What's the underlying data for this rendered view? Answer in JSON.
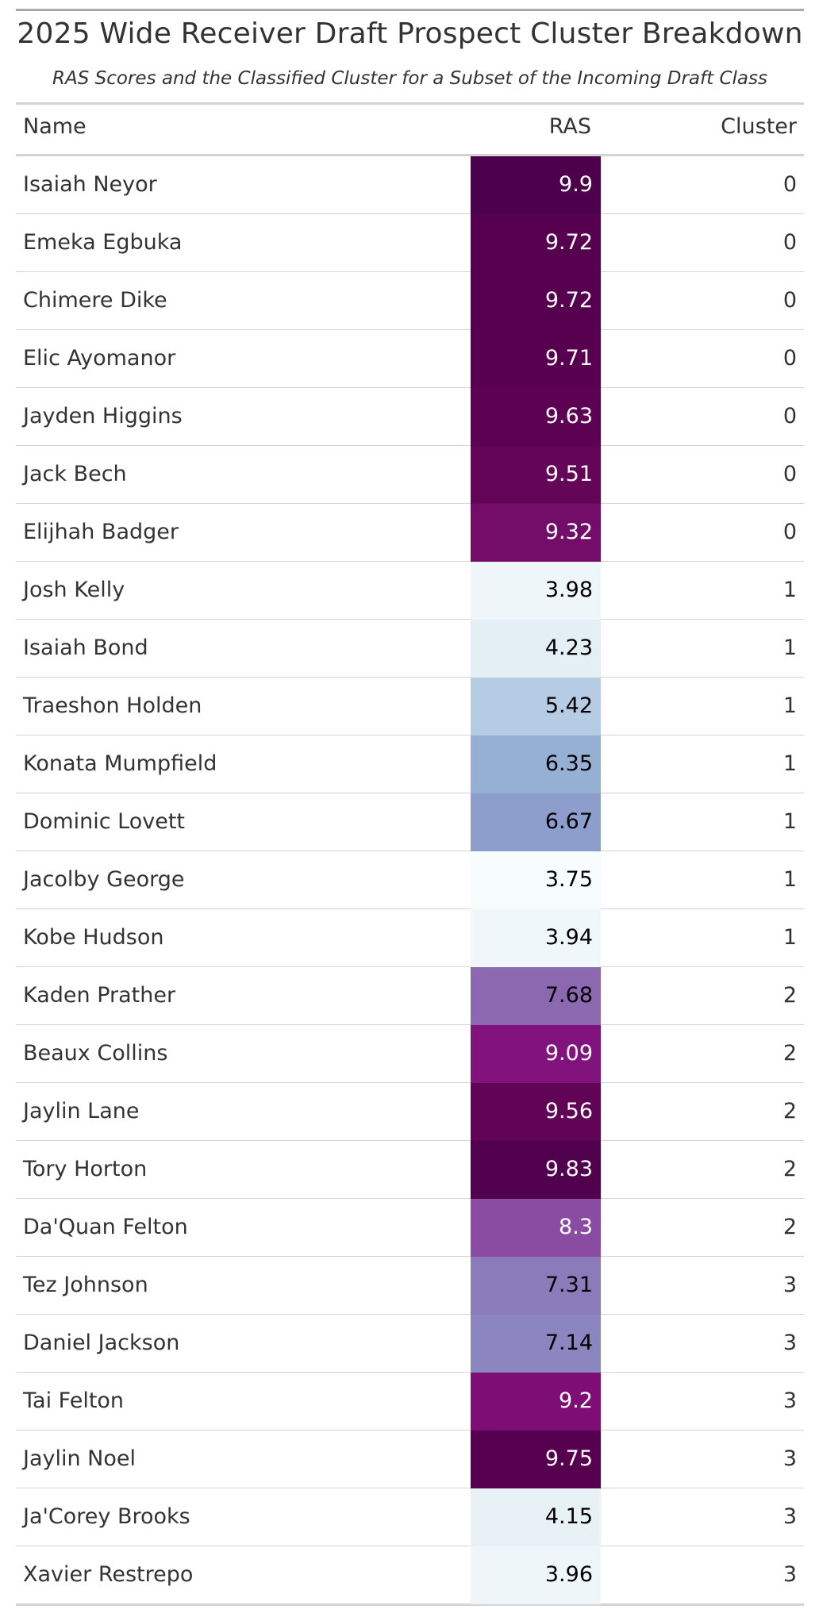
{
  "title": "2025 Wide Receiver Draft Prospect Cluster Breakdown",
  "subtitle": "RAS Scores and the Classified Cluster for a Subset of the Incoming Draft Class",
  "columns": {
    "name": "Name",
    "ras": "RAS",
    "cluster": "Cluster"
  },
  "chart_data": {
    "type": "table",
    "title": "2025 Wide Receiver Draft Prospect Cluster Breakdown",
    "subtitle": "RAS Scores and the Classified Cluster for a Subset of the Incoming Draft Class",
    "columns": [
      "Name",
      "RAS",
      "Cluster"
    ],
    "color_scale": {
      "column": "RAS",
      "low_color": "#f7fcfd",
      "high_color": "#4d004b"
    },
    "rows": [
      {
        "name": "Isaiah Neyor",
        "ras": "9.9",
        "cluster": "0",
        "color": "#4d004b",
        "text_color": "#ffffff"
      },
      {
        "name": "Emeka Egbuka",
        "ras": "9.72",
        "cluster": "0",
        "color": "#57004f",
        "text_color": "#ffffff"
      },
      {
        "name": "Chimere Dike",
        "ras": "9.72",
        "cluster": "0",
        "color": "#57004f",
        "text_color": "#ffffff"
      },
      {
        "name": "Elic Ayomanor",
        "ras": "9.71",
        "cluster": "0",
        "color": "#58004f",
        "text_color": "#ffffff"
      },
      {
        "name": "Jayden Higgins",
        "ras": "9.63",
        "cluster": "0",
        "color": "#5d0252",
        "text_color": "#ffffff"
      },
      {
        "name": "Jack Bech",
        "ras": "9.51",
        "cluster": "0",
        "color": "#640558",
        "text_color": "#ffffff"
      },
      {
        "name": "Elijhah Badger",
        "ras": "9.32",
        "cluster": "0",
        "color": "#740c69",
        "text_color": "#ffffff"
      },
      {
        "name": "Josh Kelly",
        "ras": "3.98",
        "cluster": "1",
        "color": "#eef6f9",
        "text_color": "#000000"
      },
      {
        "name": "Isaiah Bond",
        "ras": "4.23",
        "cluster": "1",
        "color": "#e3eef5",
        "text_color": "#000000"
      },
      {
        "name": "Traeshon Holden",
        "ras": "5.42",
        "cluster": "1",
        "color": "#b6cce4",
        "text_color": "#000000"
      },
      {
        "name": "Konata Mumpfield",
        "ras": "6.35",
        "cluster": "1",
        "color": "#96b0d4",
        "text_color": "#000000"
      },
      {
        "name": "Dominic Lovett",
        "ras": "6.67",
        "cluster": "1",
        "color": "#8d9ecc",
        "text_color": "#000000"
      },
      {
        "name": "Jacolby George",
        "ras": "3.75",
        "cluster": "1",
        "color": "#f7fcfd",
        "text_color": "#000000"
      },
      {
        "name": "Kobe Hudson",
        "ras": "3.94",
        "cluster": "1",
        "color": "#f0f7fa",
        "text_color": "#000000"
      },
      {
        "name": "Kaden Prather",
        "ras": "7.68",
        "cluster": "2",
        "color": "#8c68b0",
        "text_color": "#000000"
      },
      {
        "name": "Beaux Collins",
        "ras": "9.09",
        "cluster": "2",
        "color": "#82127d",
        "text_color": "#ffffff"
      },
      {
        "name": "Jaylin Lane",
        "ras": "9.56",
        "cluster": "2",
        "color": "#610456",
        "text_color": "#ffffff"
      },
      {
        "name": "Tory Horton",
        "ras": "9.83",
        "cluster": "2",
        "color": "#51004d",
        "text_color": "#ffffff"
      },
      {
        "name": "Da'Quan Felton",
        "ras": "8.3",
        "cluster": "2",
        "color": "#8a4ba2",
        "text_color": "#ffffff"
      },
      {
        "name": "Tez Johnson",
        "ras": "7.31",
        "cluster": "3",
        "color": "#8b7bbb",
        "text_color": "#000000"
      },
      {
        "name": "Daniel Jackson",
        "ras": "7.14",
        "cluster": "3",
        "color": "#8b85c0",
        "text_color": "#000000"
      },
      {
        "name": "Tai Felton",
        "ras": "9.2",
        "cluster": "3",
        "color": "#7e0e76",
        "text_color": "#ffffff"
      },
      {
        "name": "Jaylin Noel",
        "ras": "9.75",
        "cluster": "3",
        "color": "#56004f",
        "text_color": "#ffffff"
      },
      {
        "name": "Ja'Corey Brooks",
        "ras": "4.15",
        "cluster": "3",
        "color": "#e7f1f6",
        "text_color": "#000000"
      },
      {
        "name": "Xavier Restrepo",
        "ras": "3.96",
        "cluster": "3",
        "color": "#eff6f9",
        "text_color": "#000000"
      }
    ]
  }
}
